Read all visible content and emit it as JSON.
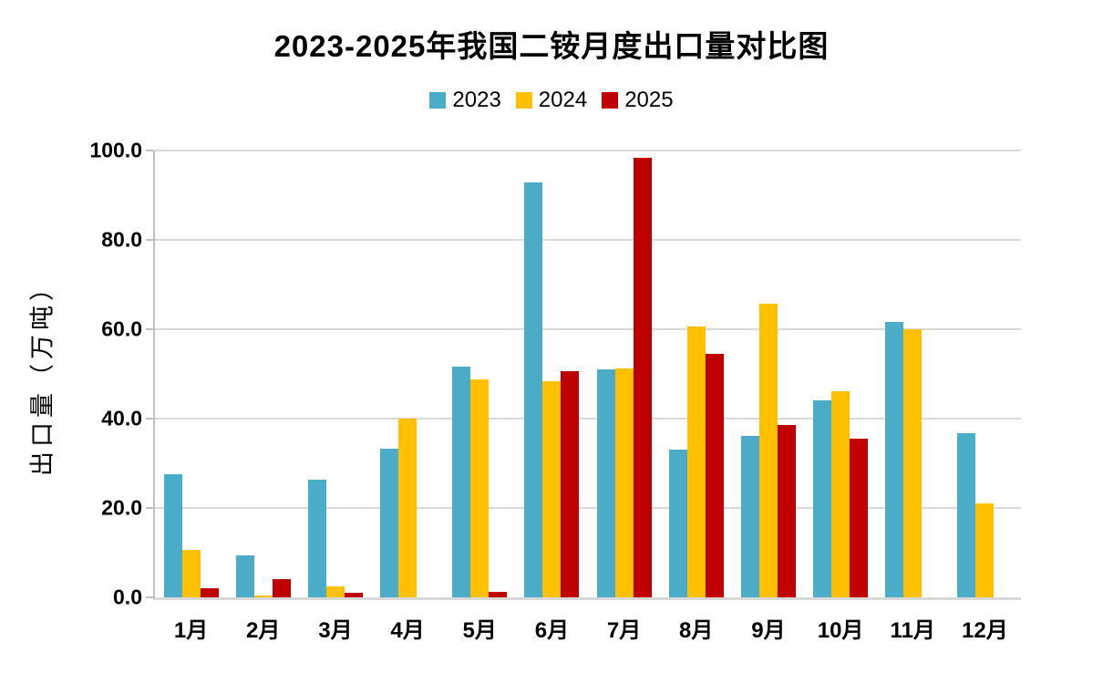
{
  "title": "2023-2025年我国二铵月度出口量对比图",
  "colors": {
    "series_2023": "#4AACC6",
    "series_2024": "#FFC000",
    "series_2025": "#C00000",
    "gridline": "#D9D9D9",
    "axis_line": "#BFBFBF",
    "text": "#000000",
    "background": "#FFFFFF"
  },
  "chart_data": {
    "type": "bar",
    "title": "2023-2025年我国二铵月度出口量对比图",
    "xlabel": "",
    "ylabel": "出口量（万吨）",
    "ylim": [
      0,
      100
    ],
    "ytick_step": 20,
    "ytick_labels": [
      "0.0",
      "20.0",
      "40.0",
      "60.0",
      "80.0",
      "100.0"
    ],
    "grid": true,
    "legend_position": "top",
    "categories": [
      "1月",
      "2月",
      "3月",
      "4月",
      "5月",
      "6月",
      "7月",
      "8月",
      "9月",
      "10月",
      "11月",
      "12月"
    ],
    "series": [
      {
        "name": "2023",
        "color": "#4AACC6",
        "values": [
          27.5,
          9.3,
          26.3,
          33.3,
          51.6,
          92.9,
          51.0,
          33.0,
          36.2,
          44.0,
          61.6,
          36.8
        ]
      },
      {
        "name": "2024",
        "color": "#FFC000",
        "values": [
          10.7,
          0.5,
          2.5,
          40.0,
          48.8,
          48.4,
          51.2,
          60.6,
          65.8,
          46.1,
          60.0,
          21.1
        ]
      },
      {
        "name": "2025",
        "color": "#C00000",
        "values": [
          2.1,
          4.1,
          1.0,
          null,
          1.2,
          50.6,
          98.4,
          54.5,
          38.6,
          35.6,
          null,
          null
        ]
      }
    ]
  }
}
